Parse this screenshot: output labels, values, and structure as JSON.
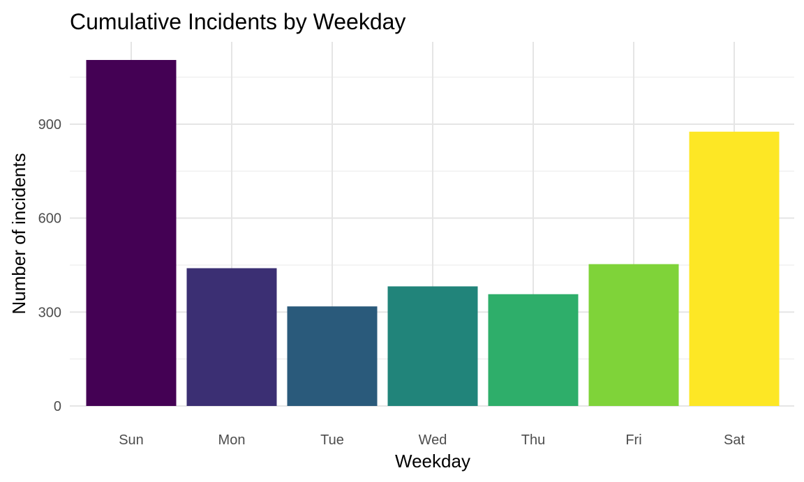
{
  "chart_data": {
    "type": "bar",
    "title": "Cumulative Incidents by Weekday",
    "xlabel": "Weekday",
    "ylabel": "Number of incidents",
    "categories": [
      "Sun",
      "Mon",
      "Tue",
      "Wed",
      "Thu",
      "Fri",
      "Sat"
    ],
    "values": [
      1105,
      440,
      318,
      382,
      357,
      453,
      876
    ],
    "colors": [
      "#440154",
      "#3B2F73",
      "#2A5A7B",
      "#21847A",
      "#2EAE6A",
      "#7FD339",
      "#FDE725"
    ],
    "yticks": [
      0,
      300,
      600,
      900
    ],
    "ytick_labels": [
      "0",
      "300",
      "600",
      "900"
    ],
    "ylim": [
      0,
      1160
    ],
    "grid": true,
    "legend": "none"
  }
}
